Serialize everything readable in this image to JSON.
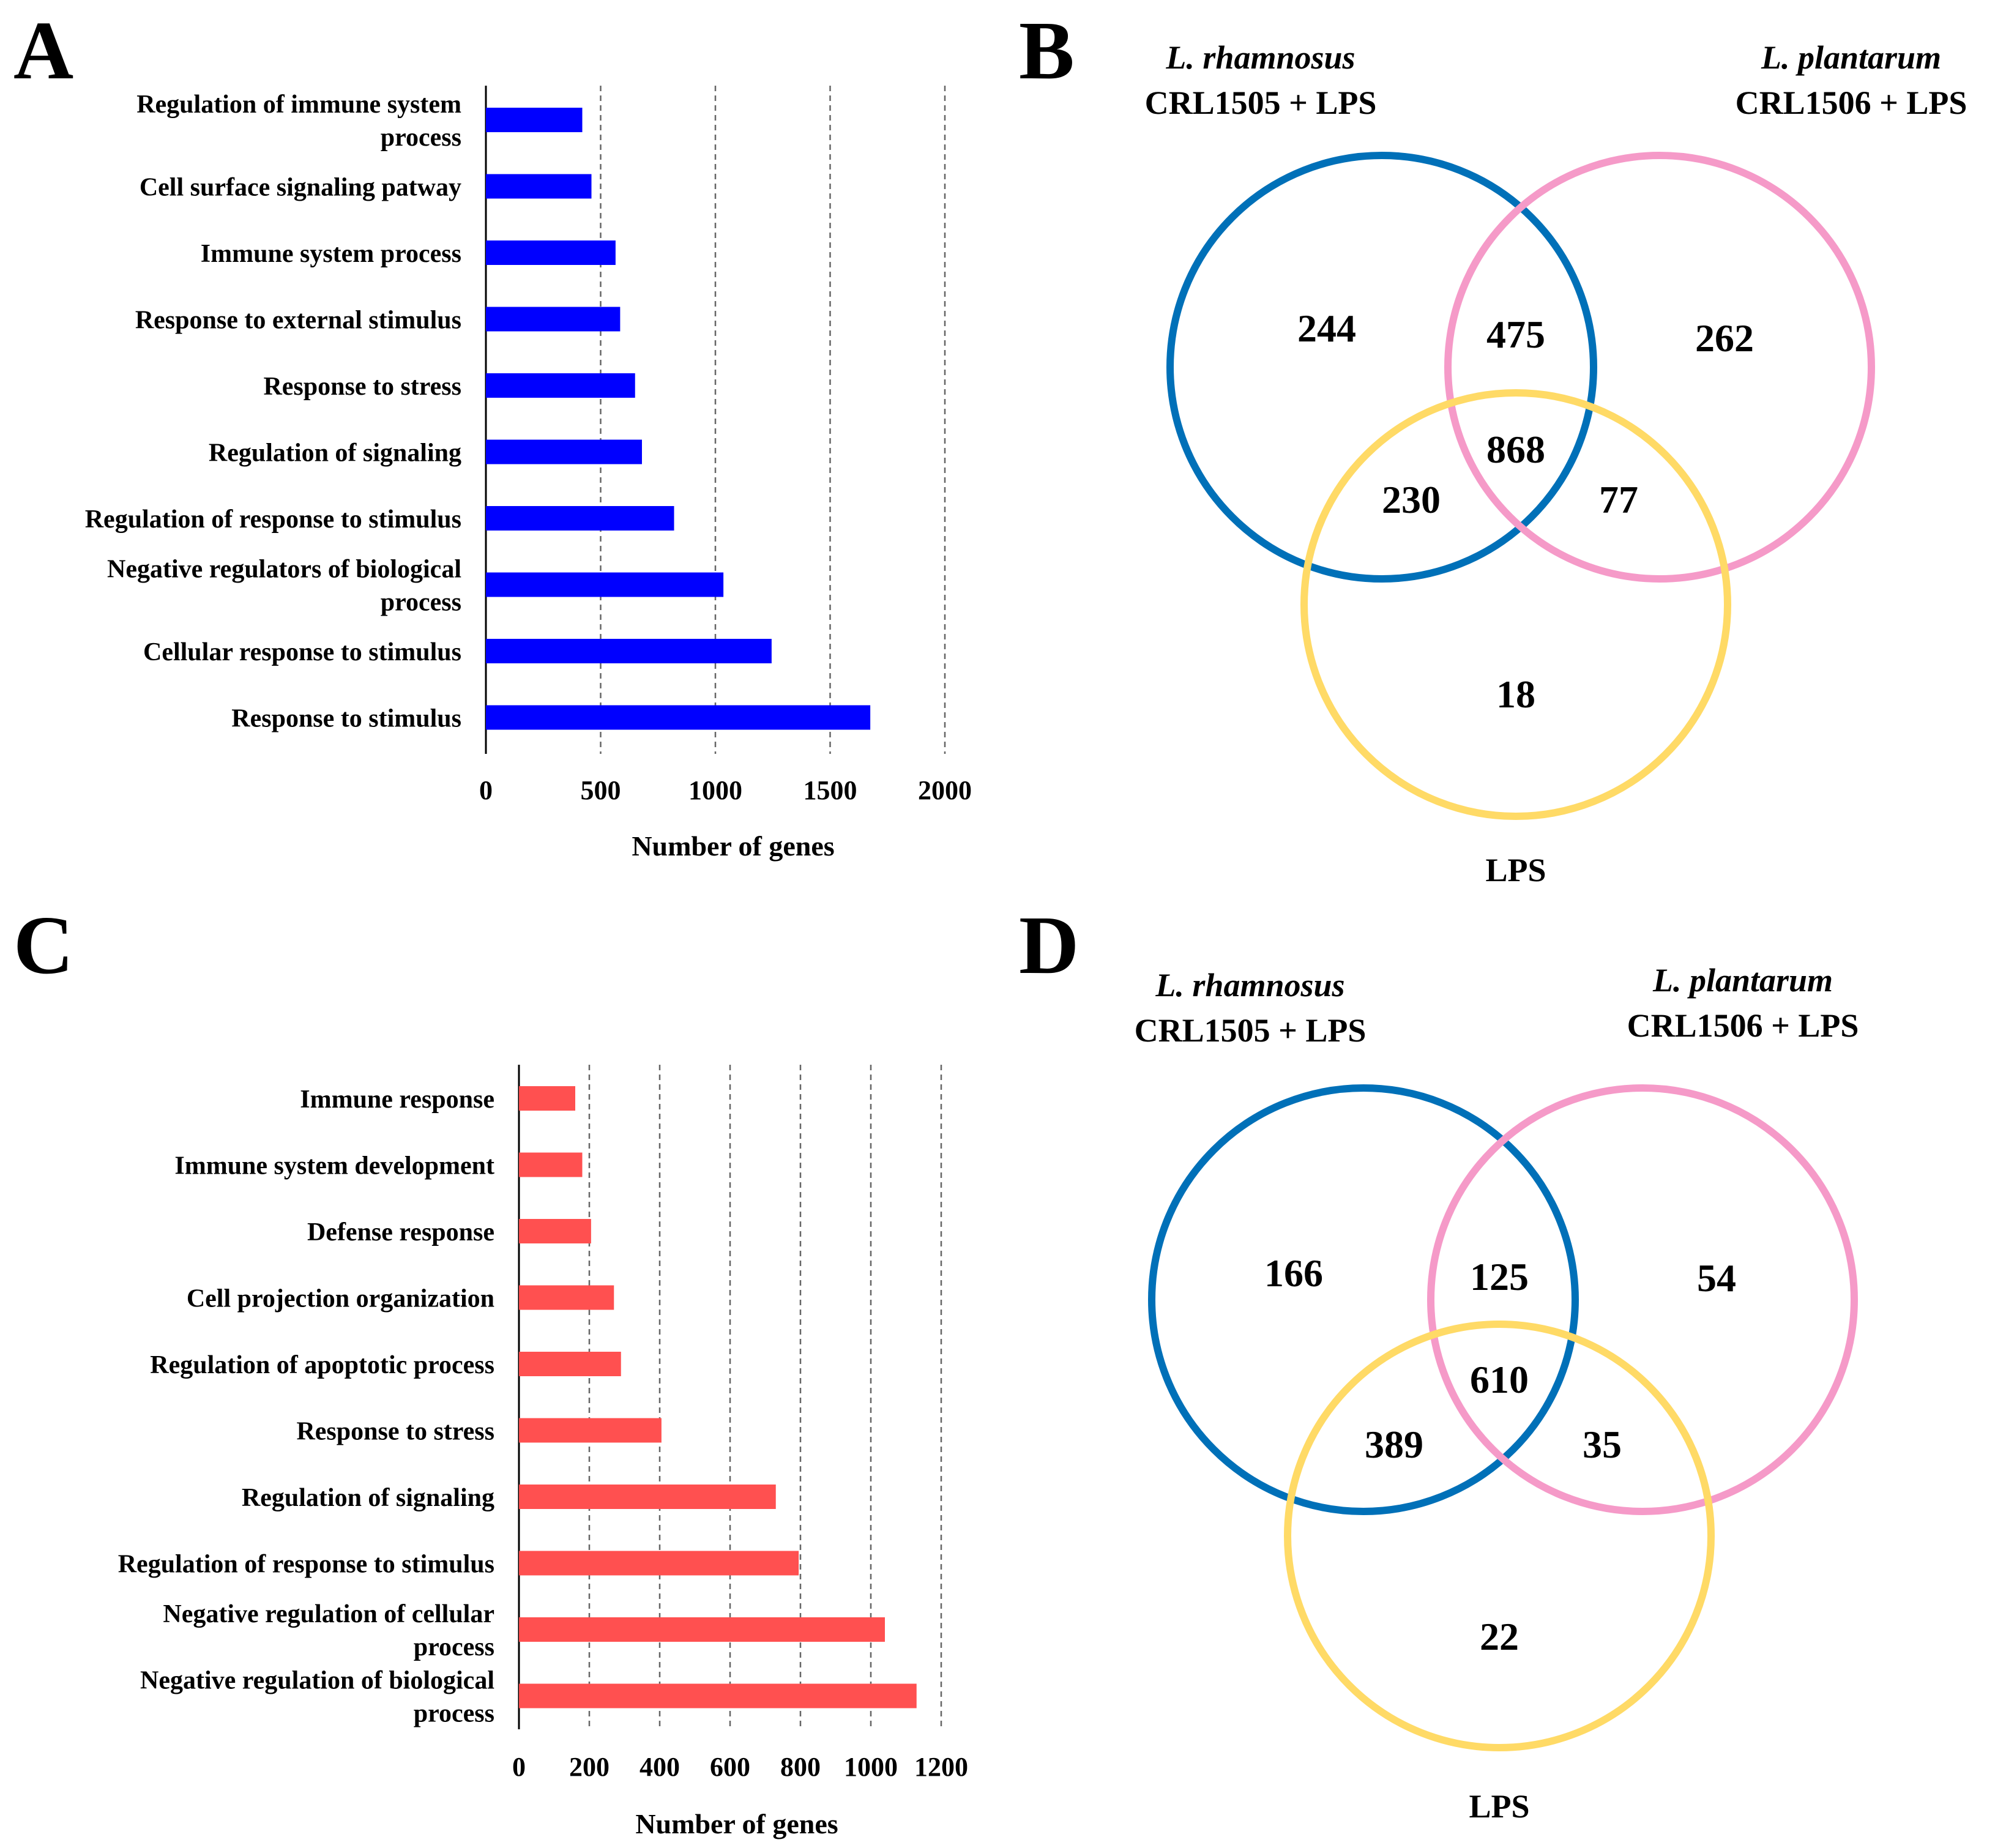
{
  "colors": {
    "bar_a": "#0000FF",
    "bar_c": "#FF5050",
    "venn_rhamnosus": "#0070B8",
    "venn_plantarum": "#F59AC8",
    "venn_lps": "#FFDA66"
  },
  "chart_data": [
    {
      "panel": "A",
      "type": "bar",
      "orientation": "horizontal",
      "categories": [
        [
          "Regulation of immune system",
          "process"
        ],
        [
          "Cell surface signaling patway"
        ],
        [
          "Immune system process"
        ],
        [
          "Response to external stimulus"
        ],
        [
          "Response to stress"
        ],
        [
          "Regulation of signaling"
        ],
        [
          "Regulation of response to stimulus"
        ],
        [
          "Negative regulators of biological",
          "process"
        ],
        [
          "Cellular response to stimulus"
        ],
        [
          "Response to stimulus"
        ]
      ],
      "values": [
        420,
        460,
        565,
        585,
        650,
        680,
        820,
        1035,
        1245,
        1675
      ],
      "xlim": [
        0,
        2000
      ],
      "xticks": [
        0,
        500,
        1000,
        1500,
        2000
      ],
      "xlabel": "Number of genes",
      "grid": true
    },
    {
      "panel": "C",
      "type": "bar",
      "orientation": "horizontal",
      "categories": [
        [
          "Immune response"
        ],
        [
          "Immune system development"
        ],
        [
          "Defense response"
        ],
        [
          "Cell projection organization"
        ],
        [
          "Regulation of apoptotic process"
        ],
        [
          "Response to stress"
        ],
        [
          "Regulation of signaling"
        ],
        [
          "Regulation of response to stimulus"
        ],
        [
          "Negative regulation of cellular",
          "process"
        ],
        [
          "Negative regulation of biological",
          "process"
        ]
      ],
      "values": [
        160,
        180,
        205,
        270,
        290,
        405,
        730,
        795,
        1040,
        1130
      ],
      "xlim": [
        0,
        1200
      ],
      "xticks": [
        0,
        200,
        400,
        600,
        800,
        1000,
        1200
      ],
      "xlabel": "Number of genes",
      "grid": true
    },
    {
      "panel": "B",
      "type": "venn",
      "sets": [
        {
          "name_italic": "L. rhamnosus",
          "name": "CRL1505 + LPS"
        },
        {
          "name_italic": "L. plantarum",
          "name": "CRL1506 + LPS"
        },
        {
          "name": "LPS"
        }
      ],
      "regions": {
        "only_rhamnosus": 244,
        "rhamnosus_plantarum": 475,
        "only_plantarum": 262,
        "all_three": 868,
        "rhamnosus_lps": 230,
        "plantarum_lps": 77,
        "only_lps": 18
      }
    },
    {
      "panel": "D",
      "type": "venn",
      "sets": [
        {
          "name_italic": "L. rhamnosus",
          "name": "CRL1505 + LPS"
        },
        {
          "name_italic": "L. plantarum",
          "name": "CRL1506 + LPS"
        },
        {
          "name": "LPS"
        }
      ],
      "regions": {
        "only_rhamnosus": 166,
        "rhamnosus_plantarum": 125,
        "only_plantarum": 54,
        "all_three": 610,
        "rhamnosus_lps": 389,
        "plantarum_lps": 35,
        "only_lps": 22
      }
    }
  ],
  "panels": {
    "a": "A",
    "b": "B",
    "c": "C",
    "d": "D"
  }
}
